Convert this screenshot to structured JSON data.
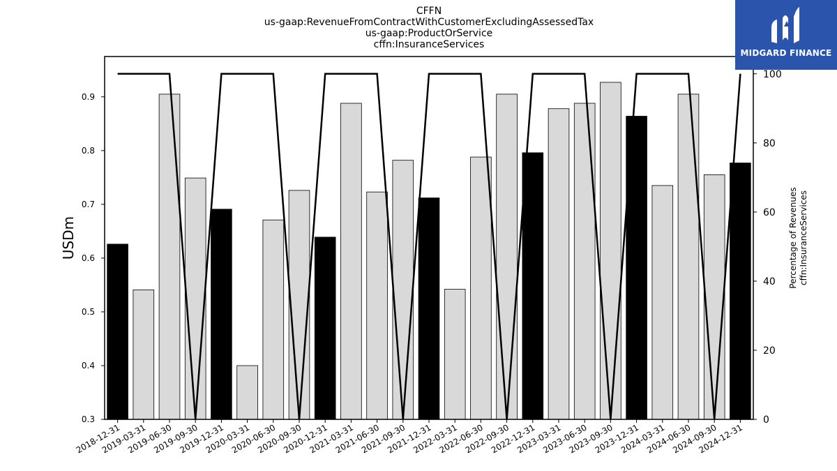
{
  "chart_data": {
    "type": "bar",
    "title_lines": [
      "CFFN",
      "us-gaap:RevenueFromContractWithCustomerExcludingAssessedTax",
      "us-gaap:ProductOrService",
      "cffn:InsuranceServices"
    ],
    "ylabel": "USDm",
    "ylabel_right": [
      "Percentage of Revenues",
      "cffn:InsuranceServices"
    ],
    "ylim": [
      0.3,
      0.975
    ],
    "yticks": [
      "0.3",
      "0.4",
      "0.5",
      "0.6",
      "0.7",
      "0.8",
      "0.9"
    ],
    "y2lim": [
      0,
      105
    ],
    "y2ticks": [
      "0",
      "20",
      "40",
      "60",
      "80",
      "100"
    ],
    "categories": [
      "2018-12-31",
      "2019-03-31",
      "2019-06-30",
      "2019-09-30",
      "2019-12-31",
      "2020-03-31",
      "2020-06-30",
      "2020-09-30",
      "2020-12-31",
      "2021-03-31",
      "2021-06-30",
      "2021-09-30",
      "2021-12-31",
      "2022-03-31",
      "2022-06-30",
      "2022-09-30",
      "2022-12-31",
      "2023-03-31",
      "2023-06-30",
      "2023-09-30",
      "2023-12-31",
      "2024-03-31",
      "2024-06-30",
      "2024-09-30",
      "2024-12-31"
    ],
    "values": [
      0.626,
      0.541,
      0.905,
      0.749,
      0.691,
      0.4,
      0.671,
      0.726,
      0.639,
      0.888,
      0.723,
      0.782,
      0.712,
      0.542,
      0.788,
      0.905,
      0.796,
      0.878,
      0.888,
      0.927,
      0.864,
      0.735,
      0.905,
      0.755,
      0.777
    ],
    "bar_highlight": [
      true,
      false,
      false,
      false,
      true,
      false,
      false,
      false,
      true,
      false,
      false,
      false,
      true,
      false,
      false,
      false,
      true,
      false,
      false,
      false,
      true,
      false,
      false,
      false,
      true
    ],
    "line_series": {
      "axis": "right",
      "values": [
        100,
        100,
        100,
        0,
        100,
        100,
        100,
        0,
        100,
        100,
        100,
        0,
        100,
        100,
        100,
        0,
        100,
        100,
        100,
        0,
        100,
        100,
        100,
        0,
        100
      ]
    },
    "colors": {
      "bar_highlight": "#000000",
      "bar_default": "#d9d9d9",
      "bar_edge": "#000000",
      "line": "#000000"
    },
    "grid": false
  },
  "logo": {
    "text": "MIDGARD FINANCE",
    "background": "#2b55ad"
  }
}
